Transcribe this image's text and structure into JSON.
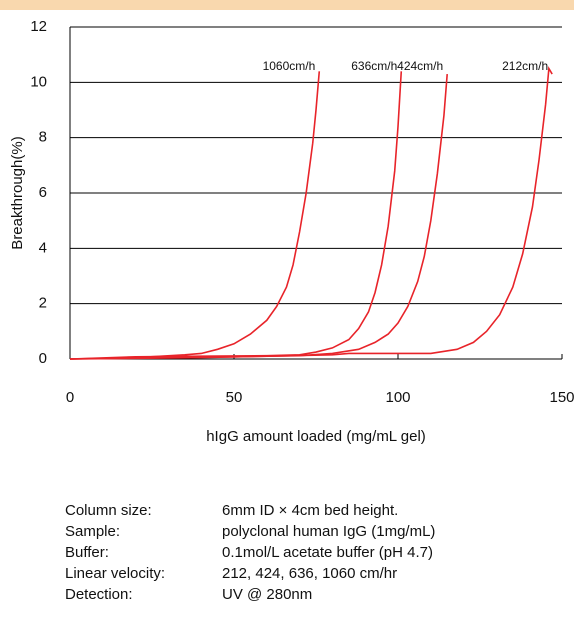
{
  "chart_data": {
    "type": "line",
    "x_label": "hIgG amount loaded (mg/mL gel)",
    "y_label": "Breakthrough(%)",
    "xlim": [
      0,
      150
    ],
    "xticks": [
      0,
      50,
      100,
      150
    ],
    "ylim": [
      0,
      12
    ],
    "yticks": [
      0,
      2,
      4,
      6,
      8,
      10,
      12
    ],
    "grid": true,
    "series": [
      {
        "name": "1060cm/h",
        "color": "#e8242a",
        "x": [
          0,
          20,
          35,
          40,
          45,
          50,
          55,
          60,
          63,
          66,
          68,
          70,
          72,
          74,
          75,
          76
        ],
        "values": [
          0,
          0.05,
          0.15,
          0.2,
          0.35,
          0.55,
          0.9,
          1.4,
          1.9,
          2.6,
          3.4,
          4.6,
          6.0,
          7.8,
          9.0,
          10.4
        ]
      },
      {
        "name": "636cm/h",
        "color": "#e8242a",
        "x": [
          0,
          20,
          40,
          60,
          70,
          75,
          80,
          85,
          88,
          91,
          93,
          95,
          97,
          99,
          100,
          101
        ],
        "values": [
          0,
          0.08,
          0.1,
          0.12,
          0.15,
          0.25,
          0.4,
          0.7,
          1.1,
          1.7,
          2.4,
          3.4,
          4.8,
          6.8,
          8.4,
          10.4
        ]
      },
      {
        "name": "424cm/h",
        "color": "#e8242a",
        "x": [
          0,
          30,
          50,
          70,
          80,
          88,
          93,
          97,
          100,
          103,
          106,
          108,
          110,
          112,
          114,
          115
        ],
        "values": [
          0,
          0.05,
          0.08,
          0.12,
          0.2,
          0.35,
          0.6,
          0.9,
          1.3,
          1.9,
          2.8,
          3.7,
          5.0,
          6.7,
          8.8,
          10.3
        ]
      },
      {
        "name": "212cm/h",
        "color": "#e8242a",
        "x": [
          0,
          40,
          60,
          80,
          85,
          110,
          118,
          123,
          127,
          131,
          135,
          138,
          141,
          143,
          145,
          146,
          147
        ],
        "values": [
          0,
          0.05,
          0.1,
          0.15,
          0.2,
          0.2,
          0.35,
          0.6,
          1.0,
          1.6,
          2.6,
          3.8,
          5.5,
          7.2,
          9.2,
          10.5,
          10.3
        ]
      }
    ]
  },
  "notes": [
    {
      "label": "Column size:",
      "value": "6mm ID × 4cm bed height."
    },
    {
      "label": "Sample:",
      "value": "polyclonal human IgG (1mg/mL)"
    },
    {
      "label": "Buffer:",
      "value": "0.1mol/L acetate buffer (pH 4.7)"
    },
    {
      "label": "Linear velocity:",
      "value": "212, 424, 636, 1060 cm/hr"
    },
    {
      "label": "Detection:",
      "value": "UV @ 280nm"
    }
  ]
}
